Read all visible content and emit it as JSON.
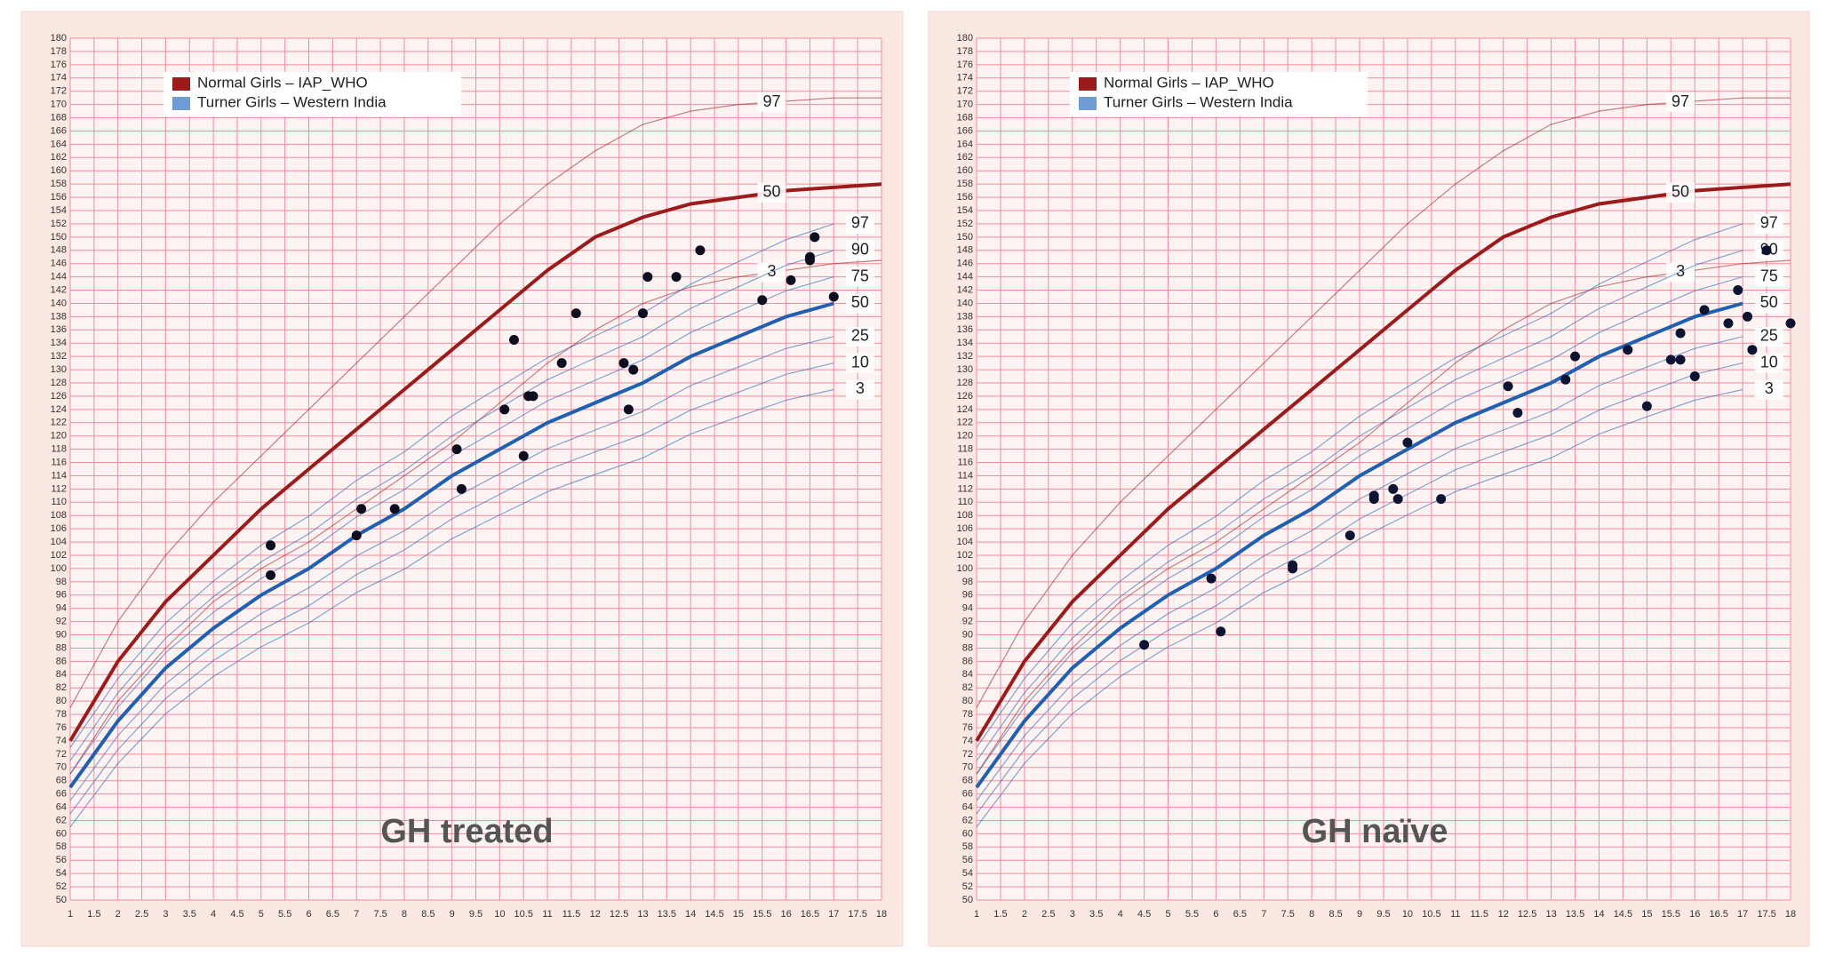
{
  "chart_data": [
    {
      "type": "scatter",
      "title": "GH treated",
      "xlim": [
        1,
        18
      ],
      "ylim": [
        50,
        180
      ],
      "grid": true,
      "xticks": [
        1,
        1.5,
        2,
        2.5,
        3,
        3.5,
        4,
        4.5,
        5,
        5.5,
        6,
        6.5,
        7,
        7.5,
        8,
        8.5,
        9,
        9.5,
        10,
        10.5,
        11,
        11.5,
        12,
        12.5,
        13,
        13.5,
        14,
        14.5,
        15,
        15.5,
        16,
        16.5,
        17,
        17.5,
        18
      ],
      "yticks": [
        50,
        52,
        54,
        56,
        58,
        60,
        62,
        64,
        66,
        68,
        70,
        72,
        74,
        76,
        78,
        80,
        82,
        84,
        86,
        88,
        90,
        92,
        94,
        96,
        98,
        100,
        102,
        104,
        106,
        108,
        110,
        112,
        114,
        116,
        118,
        120,
        122,
        124,
        126,
        128,
        130,
        132,
        134,
        136,
        138,
        140,
        142,
        144,
        146,
        148,
        150,
        152,
        154,
        156,
        158,
        160,
        162,
        164,
        166,
        168,
        170,
        172,
        174,
        176,
        178,
        180
      ],
      "series": [
        {
          "name": "Normal Girls – IAP_WHO",
          "color": "#9b1b1b",
          "x": [
            1,
            2,
            3,
            4,
            5,
            6,
            7,
            8,
            9,
            10,
            11,
            12,
            13,
            14,
            15,
            16,
            17,
            18
          ],
          "curves": [
            {
              "label": 97,
              "values": [
                79,
                92,
                102,
                110,
                117,
                124,
                131,
                138,
                145,
                152,
                158,
                163,
                167,
                169,
                170,
                170.5,
                171,
                171
              ]
            },
            {
              "label": 50,
              "values": [
                74,
                86,
                95,
                102,
                109,
                115,
                121,
                127,
                133,
                139,
                145,
                150,
                153,
                155,
                156,
                157,
                157.5,
                158
              ]
            },
            {
              "label": 3,
              "values": [
                69,
                80,
                88,
                95,
                100,
                104,
                109,
                114,
                119,
                125,
                131,
                136,
                140,
                142.5,
                144,
                145,
                146,
                146.5
              ]
            }
          ]
        },
        {
          "name": "Turner Girls – Western India",
          "color": "#2060b0",
          "x": [
            1,
            2,
            3,
            4,
            5,
            6,
            7,
            8,
            9,
            10,
            11,
            12,
            13,
            14,
            15,
            16,
            17
          ],
          "curves": [
            {
              "label": 97,
              "values": [
                73,
                83.4,
                91.8,
                98.1,
                103.5,
                107.9,
                113.3,
                117.6,
                123,
                127.4,
                131.8,
                135.1,
                138.5,
                142.9,
                146.3,
                149.6,
                152
              ]
            },
            {
              "label": 90,
              "values": [
                71,
                81.25,
                89.5,
                95.75,
                101,
                105.25,
                110.5,
                114.75,
                120,
                124.25,
                128.5,
                131.75,
                135,
                139.25,
                142.5,
                145.75,
                148
              ]
            },
            {
              "label": 75,
              "values": [
                69,
                79.1,
                87.3,
                93.4,
                98.5,
                102.6,
                107.8,
                111.9,
                117,
                121.1,
                125.3,
                128.4,
                131.5,
                135.6,
                138.8,
                141.9,
                144
              ]
            },
            {
              "label": 50,
              "values": [
                67,
                77,
                85,
                91,
                96,
                100,
                105,
                109,
                114,
                118,
                122,
                125,
                128,
                132,
                135,
                138,
                140
              ]
            },
            {
              "label": 25,
              "values": [
                65,
                74.8,
                82.6,
                88.4,
                93.2,
                97.1,
                101.9,
                105.7,
                110.5,
                114.3,
                118.1,
                120.9,
                123.7,
                127.6,
                130.4,
                133.2,
                135
              ]
            },
            {
              "label": 10,
              "values": [
                63,
                72.7,
                80.4,
                86.1,
                90.7,
                94.4,
                99.1,
                102.8,
                107.5,
                111.2,
                114.9,
                117.6,
                120.2,
                123.9,
                126.6,
                129.3,
                131
              ]
            },
            {
              "label": 3,
              "values": [
                61,
                70.6,
                78.1,
                83.7,
                88.2,
                91.8,
                96.4,
                99.9,
                104.5,
                108.1,
                111.6,
                114.2,
                116.7,
                120.3,
                122.9,
                125.4,
                127
              ]
            }
          ]
        }
      ],
      "points": {
        "color": "#0d0d1f",
        "x": [
          5.2,
          5.2,
          7,
          7.1,
          7.8,
          9.1,
          9.2,
          10.1,
          10.3,
          10.5,
          10.6,
          10.7,
          11.3,
          11.6,
          12.6,
          12.7,
          12.8,
          13,
          13.1,
          13.7,
          14.2,
          15.5,
          16.1,
          16.5,
          16.5,
          16.6,
          17
        ],
        "y": [
          103.5,
          99,
          105,
          109,
          109,
          118,
          112,
          124,
          134.5,
          117,
          126,
          126,
          131,
          138.5,
          131,
          124,
          130,
          138.5,
          144,
          144,
          148,
          140.5,
          143.5,
          146.5,
          147,
          150,
          141
        ]
      }
    },
    {
      "type": "scatter",
      "title": "GH naïve",
      "xlim": [
        1,
        18
      ],
      "ylim": [
        50,
        180
      ],
      "grid": true,
      "xticks": [
        1,
        1.5,
        2,
        2.5,
        3,
        3.5,
        4,
        4.5,
        5,
        5.5,
        6,
        6.5,
        7,
        7.5,
        8,
        8.5,
        9,
        9.5,
        10,
        10.5,
        11,
        11.5,
        12,
        12.5,
        13,
        13.5,
        14,
        14.5,
        15,
        15.5,
        16,
        16.5,
        17,
        17.5,
        18
      ],
      "yticks": [
        50,
        52,
        54,
        56,
        58,
        60,
        62,
        64,
        66,
        68,
        70,
        72,
        74,
        76,
        78,
        80,
        82,
        84,
        86,
        88,
        90,
        92,
        94,
        96,
        98,
        100,
        102,
        104,
        106,
        108,
        110,
        112,
        114,
        116,
        118,
        120,
        122,
        124,
        126,
        128,
        130,
        132,
        134,
        136,
        138,
        140,
        142,
        144,
        146,
        148,
        150,
        152,
        154,
        156,
        158,
        160,
        162,
        164,
        166,
        168,
        170,
        172,
        174,
        176,
        178,
        180
      ],
      "series": [
        {
          "name": "Normal Girls – IAP_WHO",
          "color": "#9b1b1b",
          "x": [
            1,
            2,
            3,
            4,
            5,
            6,
            7,
            8,
            9,
            10,
            11,
            12,
            13,
            14,
            15,
            16,
            17,
            18
          ],
          "curves": [
            {
              "label": 97,
              "values": [
                79,
                92,
                102,
                110,
                117,
                124,
                131,
                138,
                145,
                152,
                158,
                163,
                167,
                169,
                170,
                170.5,
                171,
                171
              ]
            },
            {
              "label": 50,
              "values": [
                74,
                86,
                95,
                102,
                109,
                115,
                121,
                127,
                133,
                139,
                145,
                150,
                153,
                155,
                156,
                157,
                157.5,
                158
              ]
            },
            {
              "label": 3,
              "values": [
                69,
                80,
                88,
                95,
                100,
                104,
                109,
                114,
                119,
                125,
                131,
                136,
                140,
                142.5,
                144,
                145,
                146,
                146.5
              ]
            }
          ]
        },
        {
          "name": "Turner Girls – Western India",
          "color": "#2060b0",
          "x": [
            1,
            2,
            3,
            4,
            5,
            6,
            7,
            8,
            9,
            10,
            11,
            12,
            13,
            14,
            15,
            16,
            17
          ],
          "curves": [
            {
              "label": 97,
              "values": [
                73,
                83.4,
                91.8,
                98.1,
                103.5,
                107.9,
                113.3,
                117.6,
                123,
                127.4,
                131.8,
                135.1,
                138.5,
                142.9,
                146.3,
                149.6,
                152
              ]
            },
            {
              "label": 90,
              "values": [
                71,
                81.25,
                89.5,
                95.75,
                101,
                105.25,
                110.5,
                114.75,
                120,
                124.25,
                128.5,
                131.75,
                135,
                139.25,
                142.5,
                145.75,
                148
              ]
            },
            {
              "label": 75,
              "values": [
                69,
                79.1,
                87.3,
                93.4,
                98.5,
                102.6,
                107.8,
                111.9,
                117,
                121.1,
                125.3,
                128.4,
                131.5,
                135.6,
                138.8,
                141.9,
                144
              ]
            },
            {
              "label": 50,
              "values": [
                67,
                77,
                85,
                91,
                96,
                100,
                105,
                109,
                114,
                118,
                122,
                125,
                128,
                132,
                135,
                138,
                140
              ]
            },
            {
              "label": 25,
              "values": [
                65,
                74.8,
                82.6,
                88.4,
                93.2,
                97.1,
                101.9,
                105.7,
                110.5,
                114.3,
                118.1,
                120.9,
                123.7,
                127.6,
                130.4,
                133.2,
                135
              ]
            },
            {
              "label": 10,
              "values": [
                63,
                72.7,
                80.4,
                86.1,
                90.7,
                94.4,
                99.1,
                102.8,
                107.5,
                111.2,
                114.9,
                117.6,
                120.2,
                123.9,
                126.6,
                129.3,
                131
              ]
            },
            {
              "label": 3,
              "values": [
                61,
                70.6,
                78.1,
                83.7,
                88.2,
                91.8,
                96.4,
                99.9,
                104.5,
                108.1,
                111.6,
                114.2,
                116.7,
                120.3,
                122.9,
                125.4,
                127
              ]
            }
          ]
        }
      ],
      "points": {
        "color": "#0d1433",
        "x": [
          4.5,
          5.9,
          6.1,
          7.6,
          7.6,
          8.8,
          9.3,
          9.3,
          9.7,
          9.8,
          10,
          10.7,
          12.1,
          12.3,
          13.3,
          13.5,
          14.6,
          15,
          15.5,
          15.7,
          15.7,
          16,
          16.2,
          16.7,
          16.9,
          17.1,
          17.2,
          17.5,
          18
        ],
        "y": [
          88.5,
          98.5,
          90.5,
          100.5,
          100,
          105,
          110.5,
          111,
          112,
          110.5,
          119,
          110.5,
          127.5,
          123.5,
          128.5,
          132,
          133,
          124.5,
          131.5,
          131.5,
          135.5,
          129,
          139,
          137,
          142,
          138,
          133,
          148,
          137
        ]
      }
    }
  ]
}
